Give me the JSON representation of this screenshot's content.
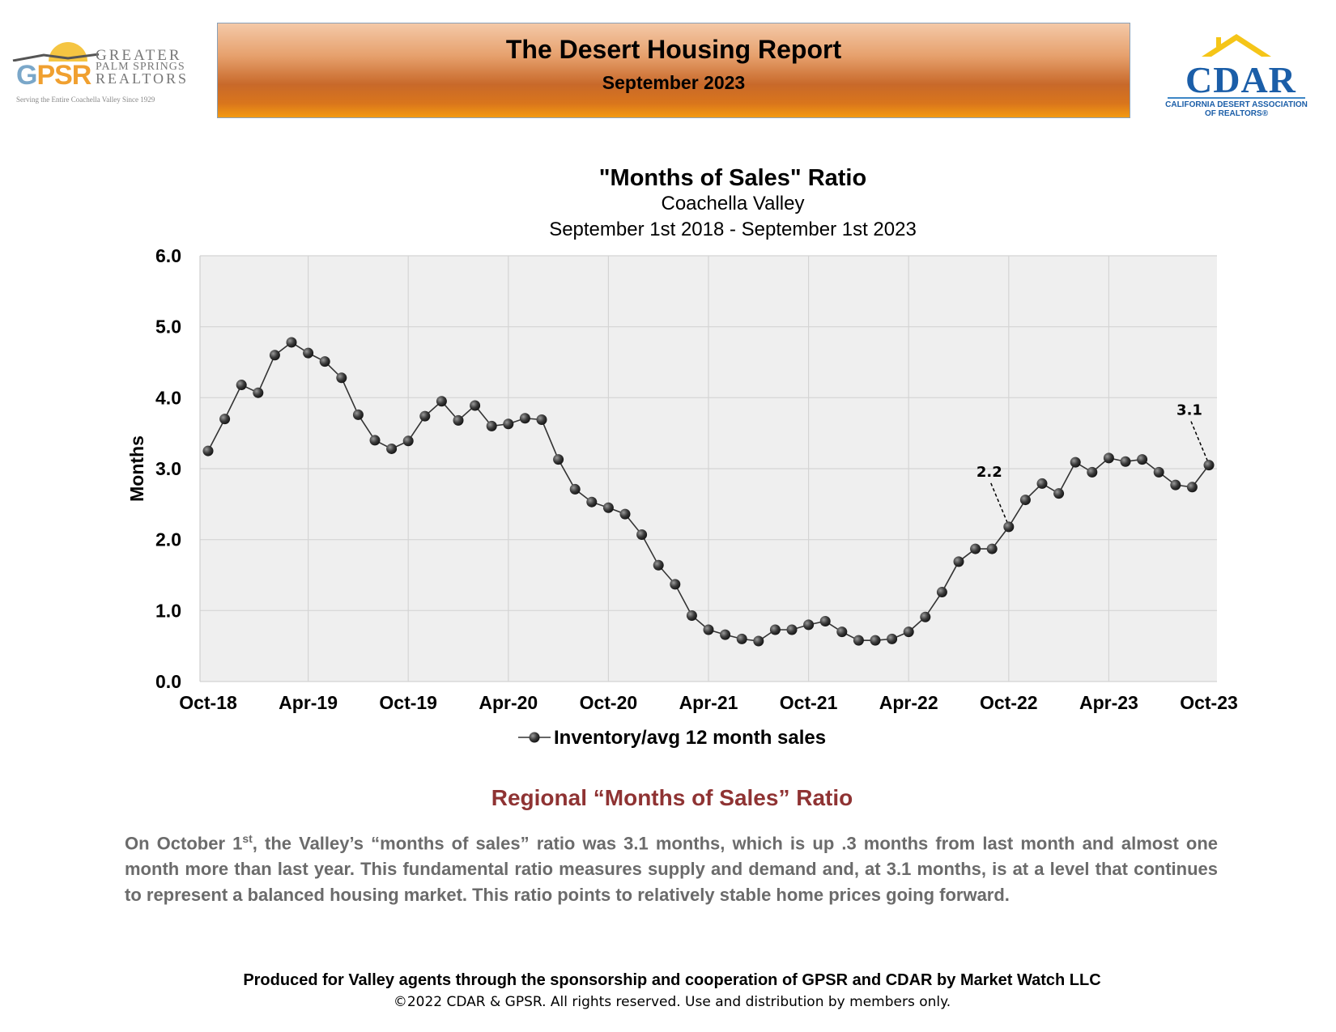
{
  "header": {
    "banner_title": "The Desert Housing Report",
    "banner_subtitle": "September 2023",
    "banner_colors": [
      "#f4c9a8",
      "#c8692a",
      "#f39a12"
    ],
    "gpsr_logo": {
      "initials_g": "G",
      "initials_psr": "PSR",
      "line1": "GREATER",
      "line2": "PALM SPRINGS",
      "line3": "REALTORS",
      "tagline": "Serving the Entire Coachella Valley Since 1929"
    },
    "cdar_logo": {
      "wordmark": "CDAR",
      "line1": "CALIFORNIA DESERT ASSOCIATION",
      "line2": "OF REALTORS"
    }
  },
  "chart_data": {
    "type": "line",
    "title": "\"Months of Sales\" Ratio",
    "subtitle1": "Coachella Valley",
    "subtitle2": "September 1st 2018 - September 1st 2023",
    "ylabel": "Months",
    "xlabel": "",
    "ylim": [
      0,
      6
    ],
    "yticks": [
      "0.0",
      "1.0",
      "2.0",
      "3.0",
      "4.0",
      "5.0",
      "6.0"
    ],
    "x_tick_labels": [
      "Oct-18",
      "Apr-19",
      "Oct-19",
      "Apr-20",
      "Oct-20",
      "Apr-21",
      "Oct-21",
      "Apr-22",
      "Oct-22",
      "Apr-23",
      "Oct-23"
    ],
    "x_tick_months": [
      0,
      6,
      12,
      18,
      24,
      30,
      36,
      42,
      48,
      54,
      60
    ],
    "grid": true,
    "legend_position": "bottom",
    "series": [
      {
        "name": "Inventory/avg 12 month sales",
        "color": "#333333",
        "values": [
          3.25,
          3.7,
          4.18,
          4.07,
          4.6,
          4.78,
          4.63,
          4.51,
          4.28,
          3.76,
          3.4,
          3.28,
          3.39,
          3.74,
          3.95,
          3.68,
          3.89,
          3.6,
          3.63,
          3.71,
          3.69,
          3.13,
          2.71,
          2.53,
          2.45,
          2.36,
          2.07,
          1.64,
          1.37,
          0.93,
          0.73,
          0.66,
          0.6,
          0.57,
          0.73,
          0.73,
          0.8,
          0.85,
          0.7,
          0.58,
          0.58,
          0.6,
          0.7,
          0.91,
          1.26,
          1.69,
          1.87,
          1.87,
          2.18,
          2.56,
          2.79,
          2.65,
          3.09,
          2.95,
          3.15,
          3.1,
          3.13,
          2.95,
          2.77,
          2.74,
          3.05
        ]
      }
    ],
    "annotations": [
      {
        "text": "2.2",
        "month": 48,
        "value": 2.18
      },
      {
        "text": "3.1",
        "month": 60,
        "value": 3.05
      }
    ]
  },
  "commentary": {
    "heading": "Regional “Months of Sales” Ratio",
    "para_start": "On October 1",
    "para_sup": "st",
    "para_rest": ", the Valley’s “months of sales” ratio was 3.1 months, which is up .3 months from last month and almost one month more than last year. This fundamental ratio measures supply and demand and, at 3.1 months, is at a level that continues to represent a balanced housing market. This ratio points to relatively stable home prices going forward."
  },
  "footer": {
    "line1": "Produced for Valley agents through the sponsorship and cooperation of GPSR and CDAR by Market Watch LLC",
    "line2": "©2022 CDAR & GPSR.  All rights reserved.  Use and distribution by members only."
  }
}
